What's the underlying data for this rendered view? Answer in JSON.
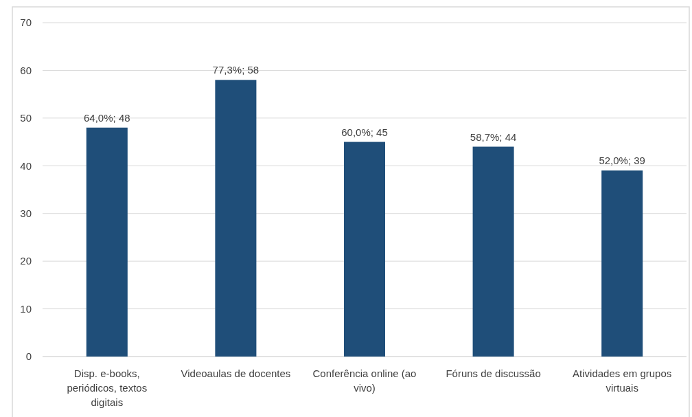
{
  "chart_data": {
    "type": "bar",
    "categories": [
      "Disp. e-books, periódicos, textos digitais",
      "Videoaulas de docentes",
      "Conferência online (ao vivo)",
      "Fóruns de discussão",
      "Atividades em grupos virtuais"
    ],
    "values": [
      48,
      58,
      45,
      44,
      39
    ],
    "value_labels": [
      "64,0%; 48",
      "77,3%; 58",
      "60,0%; 45",
      "58,7%; 44",
      "52,0%; 39"
    ],
    "color": "#1f4e79",
    "ylim": [
      0,
      70
    ],
    "yticks": [
      0,
      10,
      20,
      30,
      40,
      50,
      60,
      70
    ],
    "grid": "y"
  }
}
